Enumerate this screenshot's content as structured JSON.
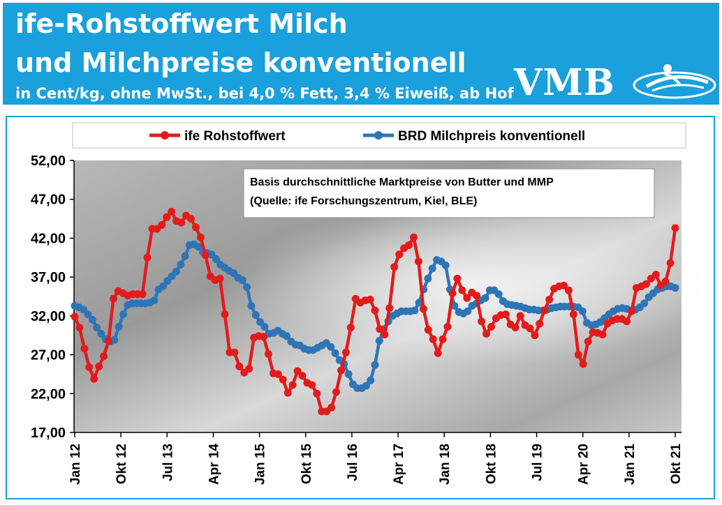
{
  "header": {
    "title_line1": "ife-Rohstoffwert Milch",
    "title_line2": "und Milchpreise konventionell",
    "subtitle": "in Cent/kg, ohne MwSt., bei 4,0 % Fett, 3,4 % Eiweiß, ab Hof",
    "logo_text": "VMB"
  },
  "colors": {
    "header_bg": "#1aa0dc",
    "series_red": "#e31b1b",
    "series_blue": "#2e75b6"
  },
  "chart_data": {
    "type": "line",
    "title": "",
    "xlabel": "",
    "ylabel": "",
    "ylim": [
      17,
      52
    ],
    "y_ticks": [
      "17,00",
      "22,00",
      "27,00",
      "32,00",
      "37,00",
      "42,00",
      "47,00",
      "52,00"
    ],
    "x_ticks": [
      "Jan 12",
      "Okt 12",
      "Jul 13",
      "Apr 14",
      "Jan 15",
      "Okt 15",
      "Jul 16",
      "Apr 17",
      "Jan 18",
      "Okt 18",
      "Jul 19",
      "Apr 20",
      "Jan 21",
      "Okt 21"
    ],
    "x_start": "Jan 12",
    "annotation": [
      "Basis durchschnittliche Marktpreise von Butter und MMP",
      "(Quelle: ife Forschungszentrum, Kiel, BLE)"
    ],
    "legend_position": "top",
    "series": [
      {
        "name": "ife Rohstoffwert",
        "color": "#e31b1b",
        "values": [
          31.9,
          30.5,
          27.8,
          25.4,
          23.9,
          25.5,
          26.8,
          28.8,
          34.2,
          35.2,
          34.9,
          34.6,
          34.8,
          34.8,
          34.8,
          39.5,
          43.2,
          43.2,
          43.7,
          44.7,
          45.4,
          44.2,
          44.0,
          44.9,
          44.5,
          43.4,
          42.1,
          39.8,
          37.1,
          36.6,
          36.8,
          32.2,
          27.3,
          27.3,
          25.5,
          24.7,
          25.2,
          29.2,
          29.4,
          29.3,
          27.1,
          24.6,
          24.5,
          23.8,
          22.1,
          23.1,
          24.9,
          24.3,
          23.4,
          23.1,
          22.0,
          19.7,
          19.7,
          20.2,
          22.2,
          25.0,
          27.3,
          30.5,
          34.2,
          33.7,
          34.0,
          34.1,
          32.7,
          30.3,
          29.6,
          33.0,
          38.3,
          39.9,
          40.7,
          41.1,
          42.1,
          39.0,
          32.9,
          30.2,
          29.0,
          27.2,
          29.0,
          30.6,
          34.9,
          36.8,
          35.3,
          34.3,
          35.0,
          34.6,
          31.3,
          29.7,
          30.6,
          31.7,
          32.1,
          32.2,
          30.9,
          30.5,
          32.0,
          30.8,
          30.4,
          29.5,
          31.0,
          32.7,
          34.1,
          35.5,
          35.8,
          35.9,
          35.3,
          32.2,
          27.0,
          25.8,
          28.7,
          29.9,
          29.8,
          29.6,
          31.0,
          31.4,
          31.6,
          31.6,
          31.3,
          32.6,
          35.6,
          35.8,
          36.1,
          36.8,
          37.3,
          35.9,
          36.4,
          38.8,
          43.3
        ]
      },
      {
        "name": "BRD Milchpreis konventionell",
        "color": "#2e75b6",
        "values": [
          33.3,
          33.1,
          32.8,
          32.2,
          31.5,
          30.5,
          29.7,
          29.0,
          28.7,
          28.9,
          30.6,
          32.2,
          33.4,
          33.6,
          33.6,
          33.6,
          33.6,
          33.7,
          34.0,
          35.4,
          35.8,
          36.5,
          37.1,
          37.7,
          38.6,
          39.7,
          41.1,
          41.2,
          40.9,
          40.2,
          40.1,
          39.9,
          39.3,
          38.6,
          38.2,
          37.8,
          37.5,
          36.9,
          36.6,
          35.7,
          33.3,
          32.1,
          31.2,
          30.6,
          29.7,
          29.8,
          30.1,
          29.7,
          29.4,
          28.7,
          28.3,
          28.2,
          27.8,
          27.6,
          27.6,
          27.9,
          28.2,
          28.5,
          28.0,
          27.2,
          26.3,
          25.8,
          24.5,
          23.2,
          22.7,
          22.7,
          23.0,
          23.7,
          25.7,
          28.8,
          30.3,
          31.3,
          32.0,
          32.3,
          32.6,
          32.6,
          32.6,
          32.7,
          33.7,
          35.4,
          36.8,
          38.1,
          39.2,
          39.0,
          38.5,
          35.4,
          33.3,
          32.5,
          32.3,
          32.6,
          33.3,
          33.6,
          34.0,
          34.3,
          35.3,
          35.3,
          34.8,
          33.9,
          33.5,
          33.4,
          33.3,
          33.2,
          33.0,
          32.8,
          32.8,
          32.7,
          32.7,
          32.8,
          33.0,
          33.1,
          33.2,
          33.2,
          33.2,
          33.2,
          33.1,
          32.6,
          31.1,
          30.8,
          30.9,
          31.2,
          31.7,
          32.2,
          32.6,
          32.9,
          33.0,
          32.9,
          32.7,
          32.8,
          33.1,
          33.6,
          34.4,
          34.9,
          35.4,
          35.6,
          35.8,
          35.8,
          35.6
        ]
      }
    ]
  }
}
